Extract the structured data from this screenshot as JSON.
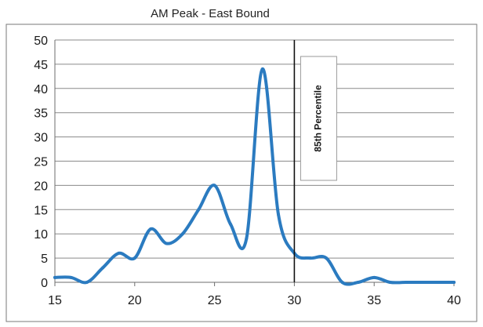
{
  "chart_data": {
    "type": "line",
    "title": "AM Peak - East Bound",
    "xlabel": "",
    "ylabel": "",
    "xlim": [
      15,
      40
    ],
    "ylim": [
      0,
      50
    ],
    "x_ticks": [
      15,
      20,
      25,
      30,
      35,
      40
    ],
    "y_ticks": [
      0,
      5,
      10,
      15,
      20,
      25,
      30,
      35,
      40,
      45,
      50
    ],
    "grid": "horizontal",
    "legend": "none",
    "series": [
      {
        "color": "#2b7bc0",
        "points": [
          [
            15,
            1
          ],
          [
            16,
            1
          ],
          [
            17,
            0
          ],
          [
            18,
            3
          ],
          [
            19,
            6
          ],
          [
            20,
            5
          ],
          [
            21,
            11
          ],
          [
            22,
            8
          ],
          [
            23,
            10
          ],
          [
            24,
            15
          ],
          [
            25,
            20
          ],
          [
            26,
            12
          ],
          [
            27,
            9
          ],
          [
            28,
            44
          ],
          [
            29,
            14
          ],
          [
            30,
            6
          ],
          [
            31,
            5
          ],
          [
            32,
            5
          ],
          [
            33,
            0
          ],
          [
            34,
            0
          ],
          [
            35,
            1
          ],
          [
            36,
            0
          ],
          [
            37,
            0
          ],
          [
            38,
            0
          ],
          [
            39,
            0
          ],
          [
            40,
            0
          ]
        ]
      }
    ],
    "annotations": [
      {
        "type": "vertical-line",
        "x": 30,
        "label": "85th Percentile",
        "color": "#111111"
      }
    ]
  }
}
